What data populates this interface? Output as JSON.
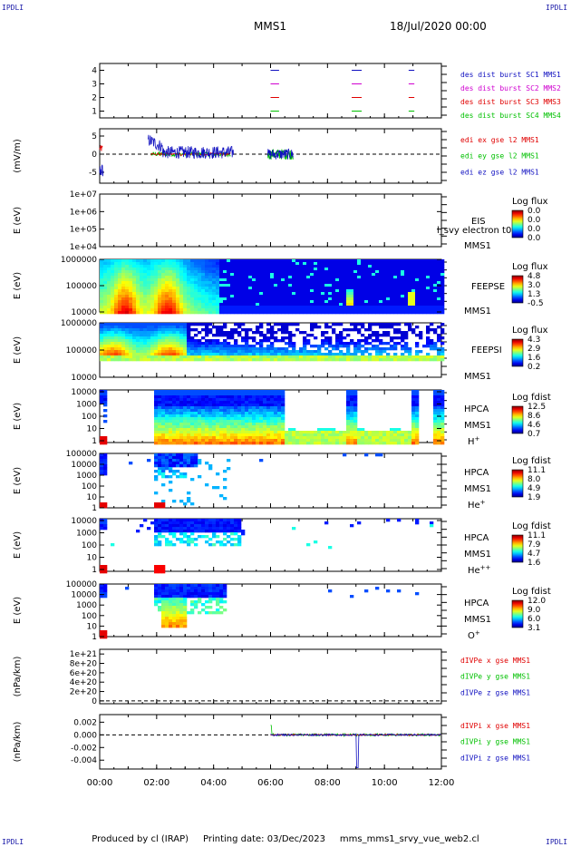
{
  "corner_label": "IPDLI",
  "header": {
    "title": "MMS1",
    "date": "18/Jul/2020 00:00"
  },
  "footer": {
    "producer": "Produced by cl (IRAP)",
    "printing": "Printing date: 03/Dec/2023",
    "file": "mms_mms1_srvy_vue_web2.cl"
  },
  "colors": {
    "blue": "#1010c0",
    "magenta": "#d000d0",
    "red": "#e00000",
    "green": "#00c000",
    "dashed": "#000000"
  },
  "chart_data": [
    {
      "id": "burst",
      "type": "line",
      "ylabel": "",
      "ylim": [
        0.5,
        4.5
      ],
      "yticks": [
        "1",
        "2",
        "3",
        "4"
      ],
      "series": [
        {
          "name": "des dist burst SC1 MMS1",
          "color": "blue",
          "level": 4,
          "segments": [
            [
              6.0,
              6.3
            ],
            [
              8.85,
              9.2
            ],
            [
              10.85,
              11.05
            ]
          ]
        },
        {
          "name": "des dist burst SC2 MMS2",
          "color": "magenta",
          "level": 3,
          "segments": [
            [
              6.0,
              6.3
            ],
            [
              8.85,
              9.2
            ],
            [
              10.85,
              11.05
            ]
          ]
        },
        {
          "name": "des dist burst SC3 MMS3",
          "color": "red",
          "level": 2,
          "segments": [
            [
              6.0,
              6.3
            ],
            [
              8.85,
              9.2
            ],
            [
              10.85,
              11.05
            ]
          ]
        },
        {
          "name": "des dist burst SC4 MMS4",
          "color": "green",
          "level": 1,
          "segments": [
            [
              6.0,
              6.3
            ],
            [
              8.85,
              9.2
            ],
            [
              10.85,
              11.05
            ]
          ]
        }
      ]
    },
    {
      "id": "edi",
      "type": "line",
      "ylabel": "(mV/m)",
      "ylim": [
        -8,
        7
      ],
      "yticks": [
        "5",
        "0",
        "-5"
      ],
      "tick_values": [
        5,
        0,
        -5
      ],
      "series": [
        {
          "name": "edi ex gse l2 MMS1",
          "color": "red"
        },
        {
          "name": "edi ey gse l2 MMS1",
          "color": "green"
        },
        {
          "name": "edi ez gse l2 MMS1",
          "color": "blue"
        }
      ]
    },
    {
      "id": "eis",
      "type": "heatmap",
      "ylabel": "E (eV)",
      "yticks": [
        "1e+07",
        "1e+06",
        "1e+05",
        "1e+04"
      ],
      "labels": [
        "EIS",
        "MMS1"
      ],
      "overlay": "l_svy electron t0",
      "colorbar": {
        "title": "Log flux",
        "ticks": [
          "0.0",
          "0.0",
          "0.0",
          "0.0"
        ]
      }
    },
    {
      "id": "feeps_e",
      "type": "heatmap",
      "ylabel": "E (eV)",
      "yticks": [
        "1000000",
        "100000",
        "10000"
      ],
      "labels": [
        "FEEPSE",
        "MMS1"
      ],
      "colorbar": {
        "title": "Log flux",
        "ticks": [
          "4.8",
          "3.0",
          "1.3",
          "-0.5"
        ]
      }
    },
    {
      "id": "feeps_i",
      "type": "heatmap",
      "ylabel": "E (eV)",
      "yticks": [
        "1000000",
        "100000",
        "10000"
      ],
      "labels": [
        "FEEPSI",
        "MMS1"
      ],
      "colorbar": {
        "title": "Log flux",
        "ticks": [
          "4.3",
          "2.9",
          "1.6",
          "0.2"
        ]
      }
    },
    {
      "id": "hpca_h",
      "type": "heatmap",
      "ylabel": "E (eV)",
      "yticks": [
        "10000",
        "1000",
        "100",
        "10",
        "1"
      ],
      "labels": [
        "HPCA",
        "MMS1",
        "H"
      ],
      "species_sup": "+",
      "colorbar": {
        "title": "Log fdist",
        "ticks": [
          "12.5",
          "8.6",
          "4.6",
          "0.7"
        ]
      }
    },
    {
      "id": "hpca_he",
      "type": "heatmap",
      "ylabel": "E (eV)",
      "yticks": [
        "100000",
        "10000",
        "1000",
        "100",
        "10",
        "1"
      ],
      "labels": [
        "HPCA",
        "MMS1",
        "He"
      ],
      "species_sup": "+",
      "colorbar": {
        "title": "Log fdist",
        "ticks": [
          "11.1",
          "8.0",
          "4.9",
          "1.9"
        ]
      }
    },
    {
      "id": "hpca_hepp",
      "type": "heatmap",
      "ylabel": "E (eV)",
      "yticks": [
        "10000",
        "1000",
        "100",
        "10",
        "1"
      ],
      "labels": [
        "HPCA",
        "MMS1",
        "He"
      ],
      "species_sup": "++",
      "colorbar": {
        "title": "Log fdist",
        "ticks": [
          "11.1",
          "7.9",
          "4.7",
          "1.6"
        ]
      }
    },
    {
      "id": "hpca_o",
      "type": "heatmap",
      "ylabel": "E (eV)",
      "yticks": [
        "100000",
        "10000",
        "1000",
        "100",
        "10",
        "1"
      ],
      "labels": [
        "HPCA",
        "MMS1",
        "O"
      ],
      "species_sup": "+",
      "colorbar": {
        "title": "Log fdist",
        "ticks": [
          "12.0",
          "9.0",
          "6.0",
          "3.1"
        ]
      }
    },
    {
      "id": "divpe",
      "type": "line",
      "ylabel": "(nPa/km)",
      "ylim": [
        -6e+19,
        1.1e+21
      ],
      "yticks": [
        "1e+21",
        "8e+20",
        "6e+20",
        "4e+20",
        "2e+20",
        "0"
      ],
      "tick_values": [
        1e+21,
        8e+20,
        6e+20,
        4e+20,
        2e+20,
        0
      ],
      "series": [
        {
          "name": "dIVPe x gse MMS1",
          "color": "red"
        },
        {
          "name": "dIVPe y gse MMS1",
          "color": "green"
        },
        {
          "name": "dIVPe z gse MMS1",
          "color": "blue"
        }
      ]
    },
    {
      "id": "divpi",
      "type": "line",
      "ylabel": "(nPa/km)",
      "ylim": [
        -0.0054,
        0.0032
      ],
      "yticks": [
        "0.002",
        "0.000",
        "-0.002",
        "-0.004"
      ],
      "tick_values": [
        0.002,
        0.0,
        -0.002,
        -0.004
      ],
      "series": [
        {
          "name": "dIVPi x gse MMS1",
          "color": "red"
        },
        {
          "name": "dIVPi y gse MMS1",
          "color": "green"
        },
        {
          "name": "dIVPi z gse MMS1",
          "color": "blue"
        }
      ]
    }
  ],
  "xaxis": {
    "range_hours": [
      0,
      12
    ],
    "tick_labels": [
      "00:00",
      "02:00",
      "04:00",
      "06:00",
      "08:00",
      "10:00",
      "12:00"
    ]
  }
}
